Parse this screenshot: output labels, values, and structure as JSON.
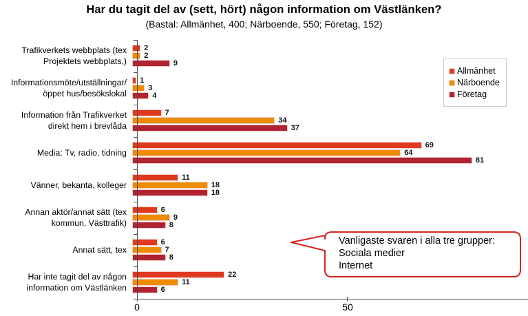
{
  "title": "Har du tagit del av (sett, hört) någon information om Västlänken?",
  "subtitle": "(Bastal: Allmänhet, 400; Närboende, 550; Företag, 152)",
  "legend": {
    "items": [
      {
        "label": "Allmänhet",
        "color": "#df3a20"
      },
      {
        "label": "Närboende",
        "color": "#ee8b01"
      },
      {
        "label": "Företag",
        "color": "#b02333"
      }
    ]
  },
  "callout": {
    "border_color": "#d42421",
    "lines": [
      "Vanligaste svaren i alla tre grupper:",
      "Sociala medier",
      "Internet"
    ]
  },
  "x_axis": {
    "tick_labels": [
      "0",
      "50"
    ]
  },
  "chart_data": {
    "type": "bar",
    "orientation": "horizontal",
    "title": "Har du tagit del av (sett, hört) någon information om Västlänken?",
    "subtitle": "(Bastal: Allmänhet, 400; Närboende, 550; Företag, 152)",
    "categories": [
      "Trafikverkets webbplats (tex Projektets webbplats,)",
      "Informationsmöte/utställningar/ öppet hus/besökslokal",
      "Information från Trafikverket direkt hem i brevlåda",
      "Media: Tv, radio, tidning",
      "Vänner, bekanta, kolleger",
      "Annan aktör/annat sätt (tex kommun, Västtrafik)",
      "Annat sätt, tex",
      "Har inte tagit del av någon information om Västlänken"
    ],
    "series": [
      {
        "name": "Allmänhet",
        "color": "#df3a20",
        "values": [
          2,
          1,
          7,
          69,
          11,
          6,
          6,
          22
        ]
      },
      {
        "name": "Närboende",
        "color": "#ee8b01",
        "values": [
          2,
          3,
          34,
          64,
          18,
          9,
          7,
          11
        ]
      },
      {
        "name": "Företag",
        "color": "#b02333",
        "values": [
          9,
          4,
          37,
          81,
          18,
          8,
          8,
          6
        ]
      }
    ],
    "x_ticks": [
      0,
      50
    ],
    "xlim": [
      0,
      93
    ],
    "grid": false,
    "legend_position": "upper right",
    "value_labels": true
  }
}
